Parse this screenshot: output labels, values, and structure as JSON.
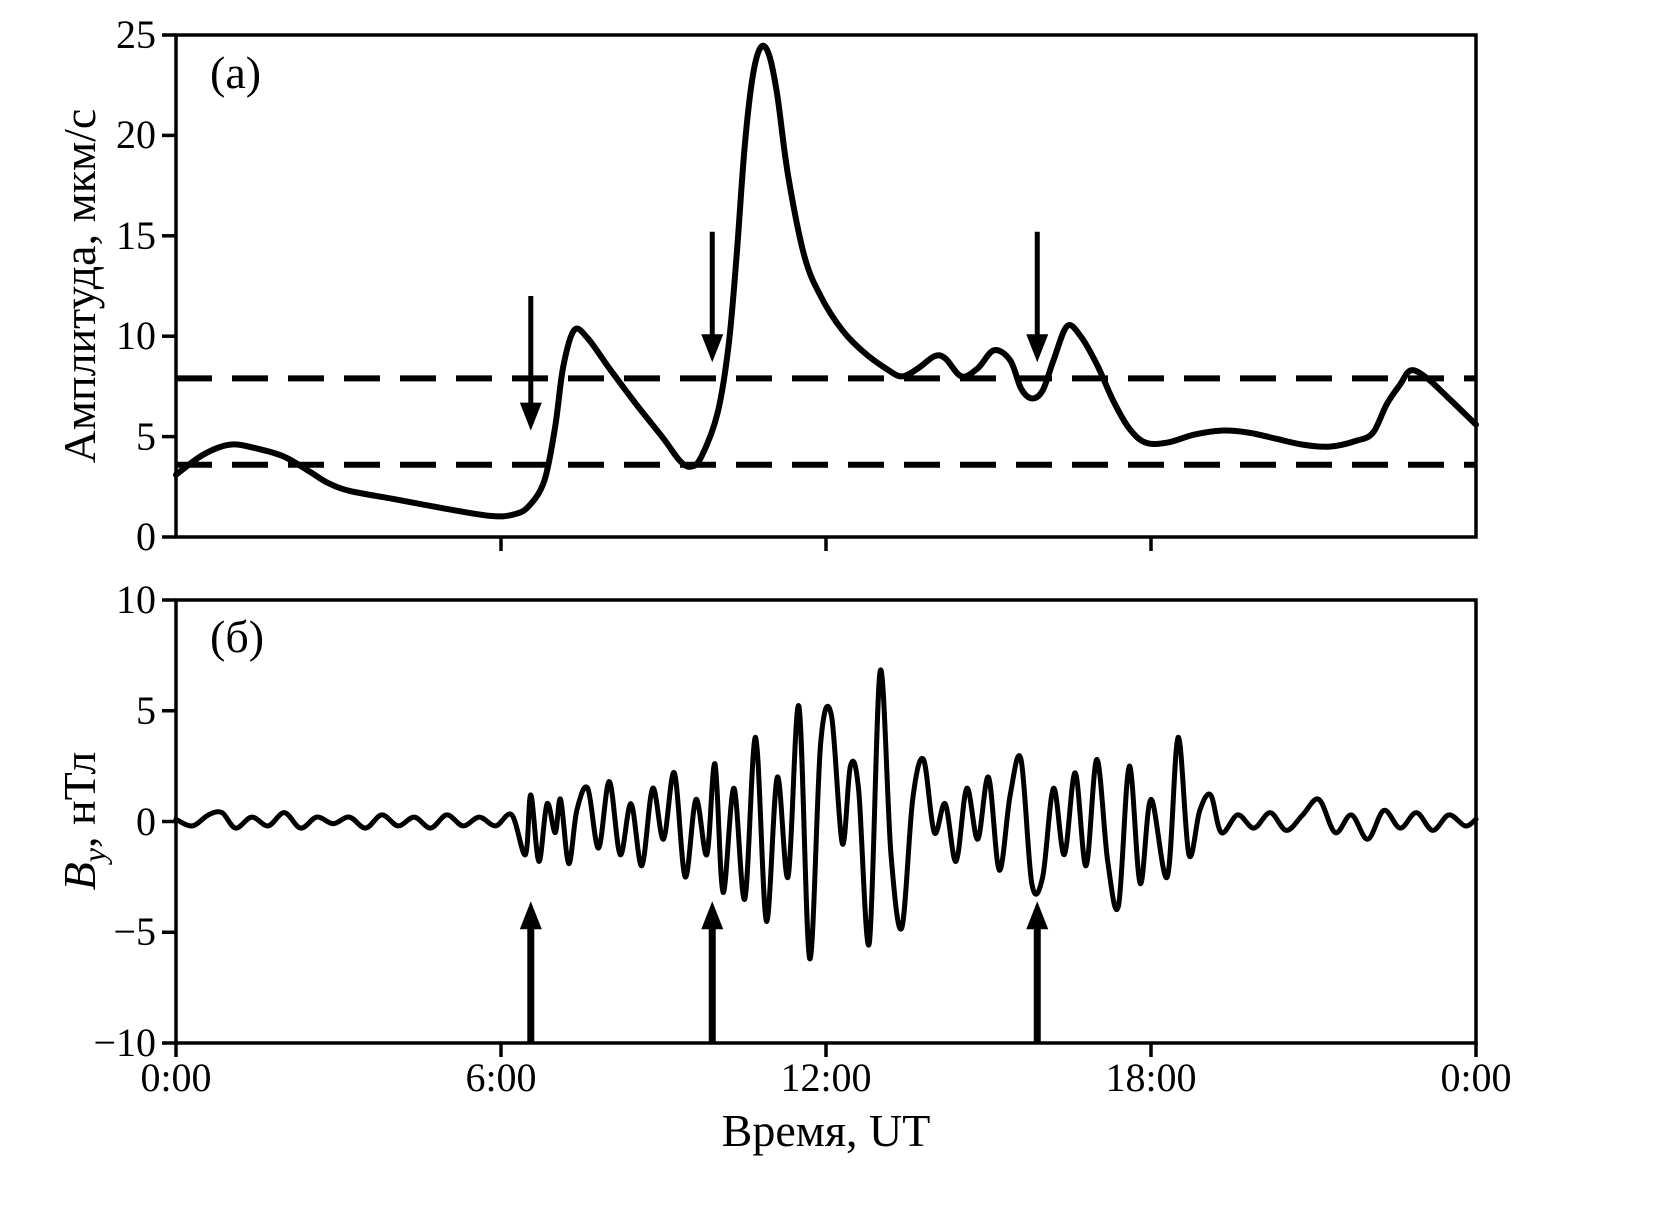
{
  "chart_data": {
    "type": "line",
    "xlabel": "Время, UT",
    "xlim_hours": [
      0,
      24
    ],
    "xticks": {
      "hours": [
        0,
        6,
        12,
        18,
        24
      ],
      "labels": [
        "0:00",
        "6:00",
        "12:00",
        "18:00",
        "0:00"
      ]
    },
    "line_color": "#000000",
    "background_color": "#ffffff",
    "panels": [
      {
        "id": "a",
        "letter": "(а)",
        "ylabel": "Амплитуда, мкм/с",
        "ylim": [
          0,
          25
        ],
        "yticks_values": [
          25,
          20,
          15,
          10,
          5,
          0
        ],
        "yticks_labels": [
          "25",
          "20",
          "15",
          "10",
          "5",
          "0"
        ],
        "xticks_inner_hours": [
          6,
          12,
          18
        ],
        "dashed_lines_y": [
          7.9,
          3.6
        ],
        "arrows": {
          "direction": "down",
          "items": [
            {
              "x": 6.55,
              "y_from": 12.0,
              "y_to": 5.3
            },
            {
              "x": 9.9,
              "y_from": 15.2,
              "y_to": 8.7
            },
            {
              "x": 15.9,
              "y_from": 15.2,
              "y_to": 8.7
            }
          ]
        },
        "series": {
          "x": [
            0,
            0.5,
            1.0,
            1.5,
            2.0,
            2.5,
            2.8,
            3.2,
            4.0,
            5.0,
            5.8,
            6.2,
            6.5,
            6.8,
            7.0,
            7.15,
            7.35,
            7.6,
            8.0,
            8.5,
            9.0,
            9.3,
            9.5,
            9.7,
            10.0,
            10.2,
            10.35,
            10.5,
            10.65,
            10.8,
            10.95,
            11.1,
            11.3,
            11.6,
            11.9,
            12.3,
            12.7,
            13.1,
            13.4,
            13.7,
            14.0,
            14.2,
            14.5,
            14.8,
            15.1,
            15.4,
            15.6,
            15.8,
            16.0,
            16.2,
            16.45,
            16.7,
            17.0,
            17.3,
            17.6,
            17.9,
            18.3,
            18.8,
            19.3,
            19.8,
            20.3,
            20.8,
            21.3,
            21.8,
            22.1,
            22.35,
            22.6,
            22.8,
            23.1,
            23.5,
            24.0
          ],
          "y": [
            3.1,
            4.1,
            4.6,
            4.4,
            4.0,
            3.2,
            2.7,
            2.3,
            1.9,
            1.4,
            1.05,
            1.1,
            1.5,
            2.8,
            5.5,
            8.5,
            10.3,
            9.9,
            8.4,
            6.6,
            4.9,
            3.8,
            3.5,
            4.0,
            6.2,
            9.5,
            14.0,
            19.5,
            23.0,
            24.4,
            24.0,
            22.0,
            18.0,
            14.0,
            12.0,
            10.3,
            9.2,
            8.4,
            8.0,
            8.4,
            9.0,
            8.9,
            8.0,
            8.4,
            9.3,
            8.8,
            7.4,
            6.9,
            7.3,
            8.8,
            10.5,
            10.0,
            8.6,
            6.8,
            5.4,
            4.7,
            4.7,
            5.1,
            5.3,
            5.2,
            4.9,
            4.6,
            4.5,
            4.8,
            5.2,
            6.6,
            7.6,
            8.3,
            7.9,
            6.9,
            5.6
          ]
        }
      },
      {
        "id": "b",
        "letter": "(б)",
        "ylabel_italic": "B",
        "ylabel_sub": "y",
        "ylabel_rest": ", нТл",
        "ylim": [
          -10,
          10
        ],
        "yticks_values": [
          10,
          5,
          0,
          -5,
          -10
        ],
        "yticks_labels": [
          "10",
          "5",
          "0",
          "−5",
          "−10"
        ],
        "arrows": {
          "direction": "up",
          "items": [
            {
              "x": 6.55,
              "y_from": -10,
              "y_to": -3.6
            },
            {
              "x": 9.9,
              "y_from": -10,
              "y_to": -3.6
            },
            {
              "x": 15.9,
              "y_from": -10,
              "y_to": -3.6
            }
          ]
        },
        "series": {
          "x": [
            0,
            0.3,
            0.6,
            0.85,
            1.1,
            1.4,
            1.7,
            2.0,
            2.3,
            2.6,
            2.9,
            3.2,
            3.5,
            3.8,
            4.1,
            4.4,
            4.7,
            5.0,
            5.3,
            5.6,
            5.9,
            6.2,
            6.45,
            6.55,
            6.7,
            6.85,
            7.0,
            7.1,
            7.25,
            7.4,
            7.6,
            7.8,
            8.0,
            8.2,
            8.4,
            8.6,
            8.8,
            9.0,
            9.2,
            9.4,
            9.6,
            9.8,
            9.95,
            10.1,
            10.3,
            10.5,
            10.7,
            10.9,
            11.1,
            11.3,
            11.5,
            11.7,
            11.9,
            12.1,
            12.3,
            12.45,
            12.6,
            12.8,
            13.0,
            13.2,
            13.4,
            13.6,
            13.8,
            14.0,
            14.2,
            14.4,
            14.6,
            14.8,
            15.0,
            15.2,
            15.4,
            15.6,
            15.8,
            16.0,
            16.2,
            16.4,
            16.6,
            16.8,
            17.0,
            17.2,
            17.4,
            17.6,
            17.8,
            18.0,
            18.3,
            18.5,
            18.7,
            18.9,
            19.1,
            19.3,
            19.6,
            19.9,
            20.2,
            20.5,
            20.8,
            21.1,
            21.4,
            21.7,
            22.0,
            22.3,
            22.6,
            22.9,
            23.2,
            23.5,
            23.8,
            24.0
          ],
          "y": [
            0.1,
            -0.2,
            0.3,
            0.4,
            -0.3,
            0.2,
            -0.2,
            0.4,
            -0.3,
            0.2,
            -0.1,
            0.2,
            -0.3,
            0.3,
            -0.2,
            0.2,
            -0.3,
            0.3,
            -0.2,
            0.2,
            -0.2,
            0.3,
            -1.5,
            1.2,
            -1.8,
            0.8,
            -0.5,
            1.0,
            -1.9,
            0.5,
            1.5,
            -1.2,
            1.8,
            -1.5,
            0.8,
            -2.0,
            1.5,
            -0.8,
            2.2,
            -2.5,
            1.0,
            -1.5,
            2.6,
            -3.2,
            1.5,
            -3.5,
            3.8,
            -4.5,
            2.0,
            -2.5,
            5.2,
            -6.2,
            3.5,
            4.8,
            -1.0,
            2.5,
            1.5,
            -5.5,
            6.8,
            -1.5,
            -4.8,
            1.0,
            2.8,
            -0.5,
            0.8,
            -1.8,
            1.5,
            -0.8,
            2.0,
            -2.2,
            1.2,
            2.8,
            -2.8,
            -2.5,
            1.5,
            -1.5,
            2.2,
            -2.0,
            2.8,
            -1.8,
            -3.8,
            2.5,
            -2.8,
            1.0,
            -2.5,
            3.8,
            -1.5,
            0.5,
            1.2,
            -0.5,
            0.3,
            -0.3,
            0.4,
            -0.4,
            0.3,
            1.0,
            -0.5,
            0.3,
            -0.8,
            0.5,
            -0.3,
            0.4,
            -0.4,
            0.3,
            -0.2,
            0.1
          ]
        }
      }
    ]
  }
}
